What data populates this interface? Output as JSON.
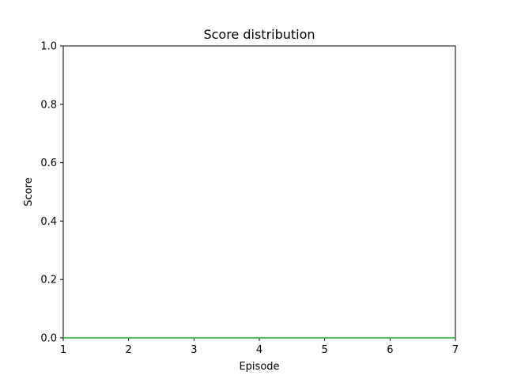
{
  "chart_data": {
    "type": "line",
    "title": "Score distribution",
    "xlabel": "Episode",
    "ylabel": "Score",
    "xlim": [
      1,
      7
    ],
    "ylim": [
      0.0,
      1.0
    ],
    "x_ticks": [
      "1",
      "2",
      "3",
      "4",
      "5",
      "6",
      "7"
    ],
    "y_ticks": [
      "0.0",
      "0.2",
      "0.4",
      "0.6",
      "0.8",
      "1.0"
    ],
    "grid": false,
    "series": [
      {
        "color": "#2ca02c",
        "x": [
          1,
          2,
          3,
          4,
          5,
          6,
          7
        ],
        "y": [
          0,
          0,
          0,
          0,
          0,
          0,
          0
        ]
      }
    ]
  }
}
